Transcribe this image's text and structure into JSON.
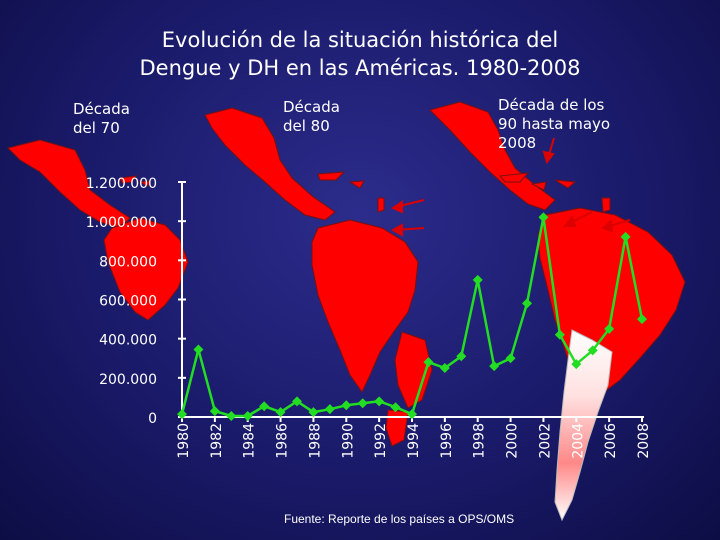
{
  "title_line1": "Evolución de la situación histórica del",
  "title_line2": "Dengue y DH en las  Américas. 1980-2008",
  "decade_labels": {
    "d70_line1": "Década",
    "d70_line2": "del 70",
    "d80_line1": "Década",
    "d80_line2": "del 80",
    "d90_line1": "Década de los",
    "d90_line2": "90 hasta mayo",
    "d90_line3": "2008"
  },
  "source": "Fuente: Reporte de los países a OPS/OMS",
  "colors": {
    "background": "#1a1a6a",
    "land": "#ff0000",
    "line": "#22dd22",
    "text": "#ffffff",
    "arrows": "#dd0000"
  },
  "chart_data": {
    "type": "line",
    "title": "",
    "xlabel": "",
    "ylabel": "",
    "ylim": [
      0,
      1200000
    ],
    "y_ticks": [
      0,
      200000,
      400000,
      600000,
      800000,
      1000000,
      1200000
    ],
    "y_tick_labels": [
      "0",
      "200.000",
      "400.000",
      "600.000",
      "800.000",
      "1.000.000",
      "1.200.000"
    ],
    "x_tick_labels": [
      "1980",
      "1982",
      "1984",
      "1986",
      "1988",
      "1990",
      "1992",
      "1994",
      "1996",
      "1998",
      "2000",
      "2002",
      "2004",
      "2006",
      "2008"
    ],
    "x": [
      1980,
      1981,
      1982,
      1983,
      1984,
      1985,
      1986,
      1987,
      1988,
      1989,
      1990,
      1991,
      1992,
      1993,
      1994,
      1995,
      1996,
      1997,
      1998,
      1999,
      2000,
      2001,
      2002,
      2003,
      2004,
      2005,
      2006,
      2007,
      2008
    ],
    "series": [
      {
        "values": [
          15000,
          345000,
          30000,
          5000,
          5000,
          55000,
          25000,
          80000,
          25000,
          40000,
          60000,
          70000,
          80000,
          50000,
          15000,
          280000,
          250000,
          310000,
          700000,
          260000,
          300000,
          580000,
          1020000,
          420000,
          270000,
          340000,
          450000,
          920000,
          500000
        ]
      }
    ],
    "grid": false,
    "legend": "none"
  }
}
